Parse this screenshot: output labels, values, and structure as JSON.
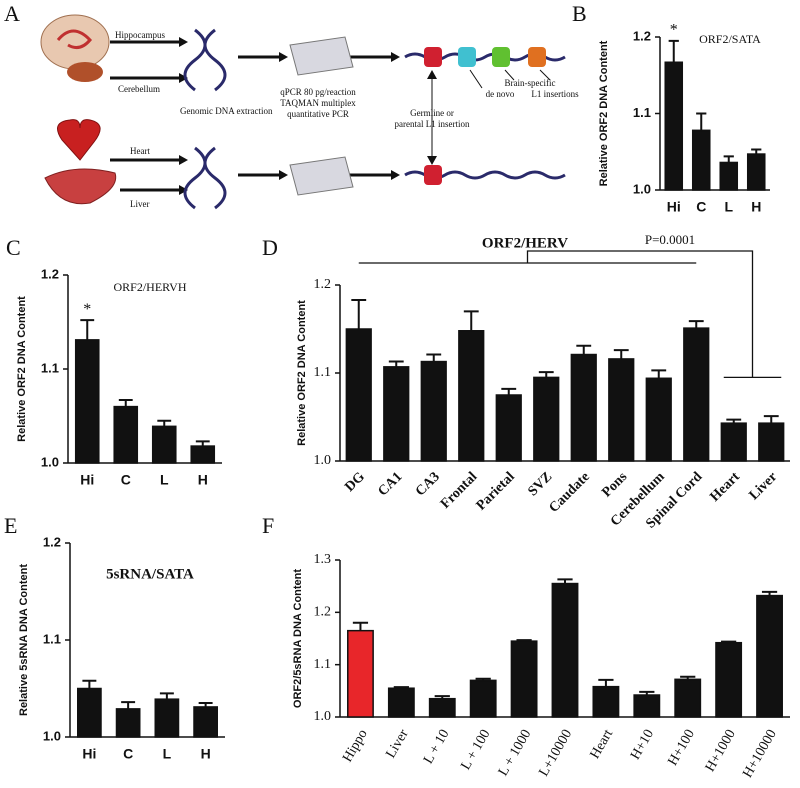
{
  "diagram": {
    "label": "A",
    "tissues": [
      "Hippocampus",
      "Cerebellum",
      "Heart",
      "Liver"
    ],
    "extraction": "Genomic DNA extraction",
    "qpcr": [
      "qPCR 80 pg/reaction",
      "TAQMAN multiplex",
      "quantitative PCR"
    ],
    "germline": [
      "Germline or",
      "parental L1 insertion"
    ],
    "brain_specific": [
      "Brain-specific",
      "de novo",
      "L1 insertions"
    ]
  },
  "chart_data": [
    {
      "type": "bar",
      "label": "B",
      "title": "ORF2/SATA",
      "y_label": "Relative ORF2 DNA Content",
      "categories": [
        "Hi",
        "C",
        "L",
        "H"
      ],
      "values": [
        1.167,
        1.078,
        1.036,
        1.047
      ],
      "errors": [
        0.028,
        0.022,
        0.008,
        0.006
      ],
      "star_labels": [
        "*",
        null,
        null,
        null
      ],
      "color": "#111111",
      "ylim": [
        1.0,
        1.2
      ],
      "yticks": [
        {
          "value": 1,
          "label": "1.0"
        },
        1.1,
        1.2
      ]
    },
    {
      "type": "bar",
      "label": "C",
      "title": "ORF2/HERVH",
      "y_label": "Relative ORF2 DNA Content",
      "categories": [
        "Hi",
        "C",
        "L",
        "H"
      ],
      "values": [
        1.131,
        1.06,
        1.039,
        1.018
      ],
      "errors": [
        0.021,
        0.007,
        0.006,
        0.005
      ],
      "star_labels": [
        "*",
        null,
        null,
        null
      ],
      "color": "#111111",
      "ylim": [
        1.0,
        1.2
      ],
      "yticks": [
        {
          "value": 1,
          "label": "1.0"
        },
        1.1,
        1.2
      ]
    },
    {
      "type": "bar",
      "label": "D",
      "title": "ORF2/HERV",
      "y_label": "Relative ORF2 DNA Content",
      "annotation": "P=0.0001",
      "categories": [
        "DG",
        "CA1",
        "CA3",
        "Frontal",
        "Parietal",
        "SVZ",
        "Caudate",
        "Pons",
        "Cerebellum",
        "Spinal Cord",
        "Heart",
        "Liver"
      ],
      "values": [
        1.15,
        1.107,
        1.113,
        1.148,
        1.075,
        1.095,
        1.121,
        1.116,
        1.094,
        1.151,
        1.043,
        1.043
      ],
      "errors": [
        0.033,
        0.006,
        0.008,
        0.022,
        0.007,
        0.006,
        0.01,
        0.01,
        0.009,
        0.008,
        0.004,
        0.008
      ],
      "color": "#111111",
      "ylim": [
        1.0,
        1.2
      ],
      "yticks": [
        {
          "value": 1,
          "label": "1.0"
        },
        1.1,
        1.2
      ]
    },
    {
      "type": "bar",
      "label": "E",
      "title": "5sRNA/SATA",
      "y_label": "Relative 5sRNA DNA Content",
      "categories": [
        "Hi",
        "C",
        "L",
        "H"
      ],
      "values": [
        1.05,
        1.029,
        1.039,
        1.031
      ],
      "errors": [
        0.008,
        0.007,
        0.006,
        0.004
      ],
      "color": "#111111",
      "ylim": [
        1.0,
        1.2
      ],
      "yticks": [
        {
          "value": 1,
          "label": "1.0"
        },
        1.1,
        1.2
      ]
    },
    {
      "type": "bar",
      "label": "F",
      "y_label": "ORF2/5sRNA DNA Content",
      "categories": [
        "Hippo",
        "Liver",
        "L + 10",
        "L + 100",
        "L + 1000",
        "L+10000",
        "Heart",
        "H+10",
        "H+100",
        "H+1000",
        "H+10000"
      ],
      "values": [
        1.165,
        1.055,
        1.035,
        1.07,
        1.145,
        1.255,
        1.058,
        1.042,
        1.072,
        1.142,
        1.232
      ],
      "errors": [
        0.015,
        0.002,
        0.005,
        0.003,
        0.002,
        0.008,
        0.013,
        0.006,
        0.005,
        0.002,
        0.007
      ],
      "colors": [
        "#e8262a",
        "#111111",
        "#111111",
        "#111111",
        "#111111",
        "#111111",
        "#111111",
        "#111111",
        "#111111",
        "#111111",
        "#111111"
      ],
      "ylim": [
        1.0,
        1.3
      ],
      "yticks": [
        {
          "value": 1,
          "label": "1.0"
        },
        1.1,
        1.2,
        1.3
      ]
    }
  ]
}
